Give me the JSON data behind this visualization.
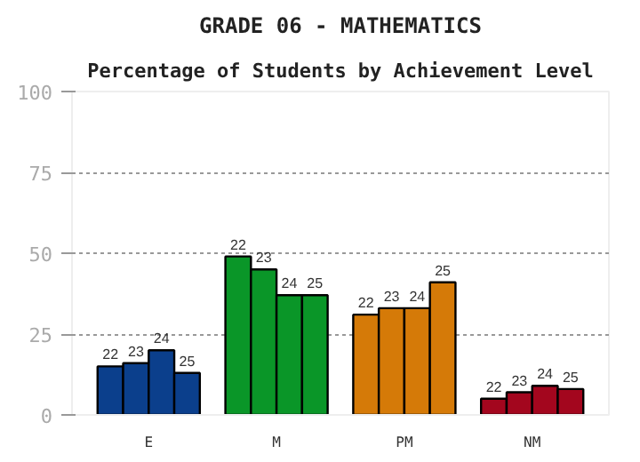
{
  "chart_data": {
    "type": "bar",
    "title": "GRADE 06 - MATHEMATICS",
    "subtitle": "Percentage of Students by Achievement Level",
    "categories": [
      "E",
      "M",
      "PM",
      "NM"
    ],
    "series": [
      {
        "name": "22",
        "colors": [
          "#0b3f8c",
          "#0a9628",
          "#d57a08",
          "#a3061e"
        ],
        "values": [
          15,
          49,
          31,
          5
        ]
      },
      {
        "name": "23",
        "colors": [
          "#0b3f8c",
          "#0a9628",
          "#d57a08",
          "#a3061e"
        ],
        "values": [
          16,
          45,
          33,
          7
        ]
      },
      {
        "name": "24",
        "colors": [
          "#0b3f8c",
          "#0a9628",
          "#d57a08",
          "#a3061e"
        ],
        "values": [
          20,
          37,
          33,
          9
        ]
      },
      {
        "name": "25",
        "colors": [
          "#0b3f8c",
          "#0a9628",
          "#d57a08",
          "#a3061e"
        ],
        "values": [
          13,
          37,
          41,
          8
        ]
      }
    ],
    "ylim": [
      0,
      100
    ],
    "yticks": [
      0,
      25,
      50,
      75,
      100
    ],
    "grid": "y"
  }
}
